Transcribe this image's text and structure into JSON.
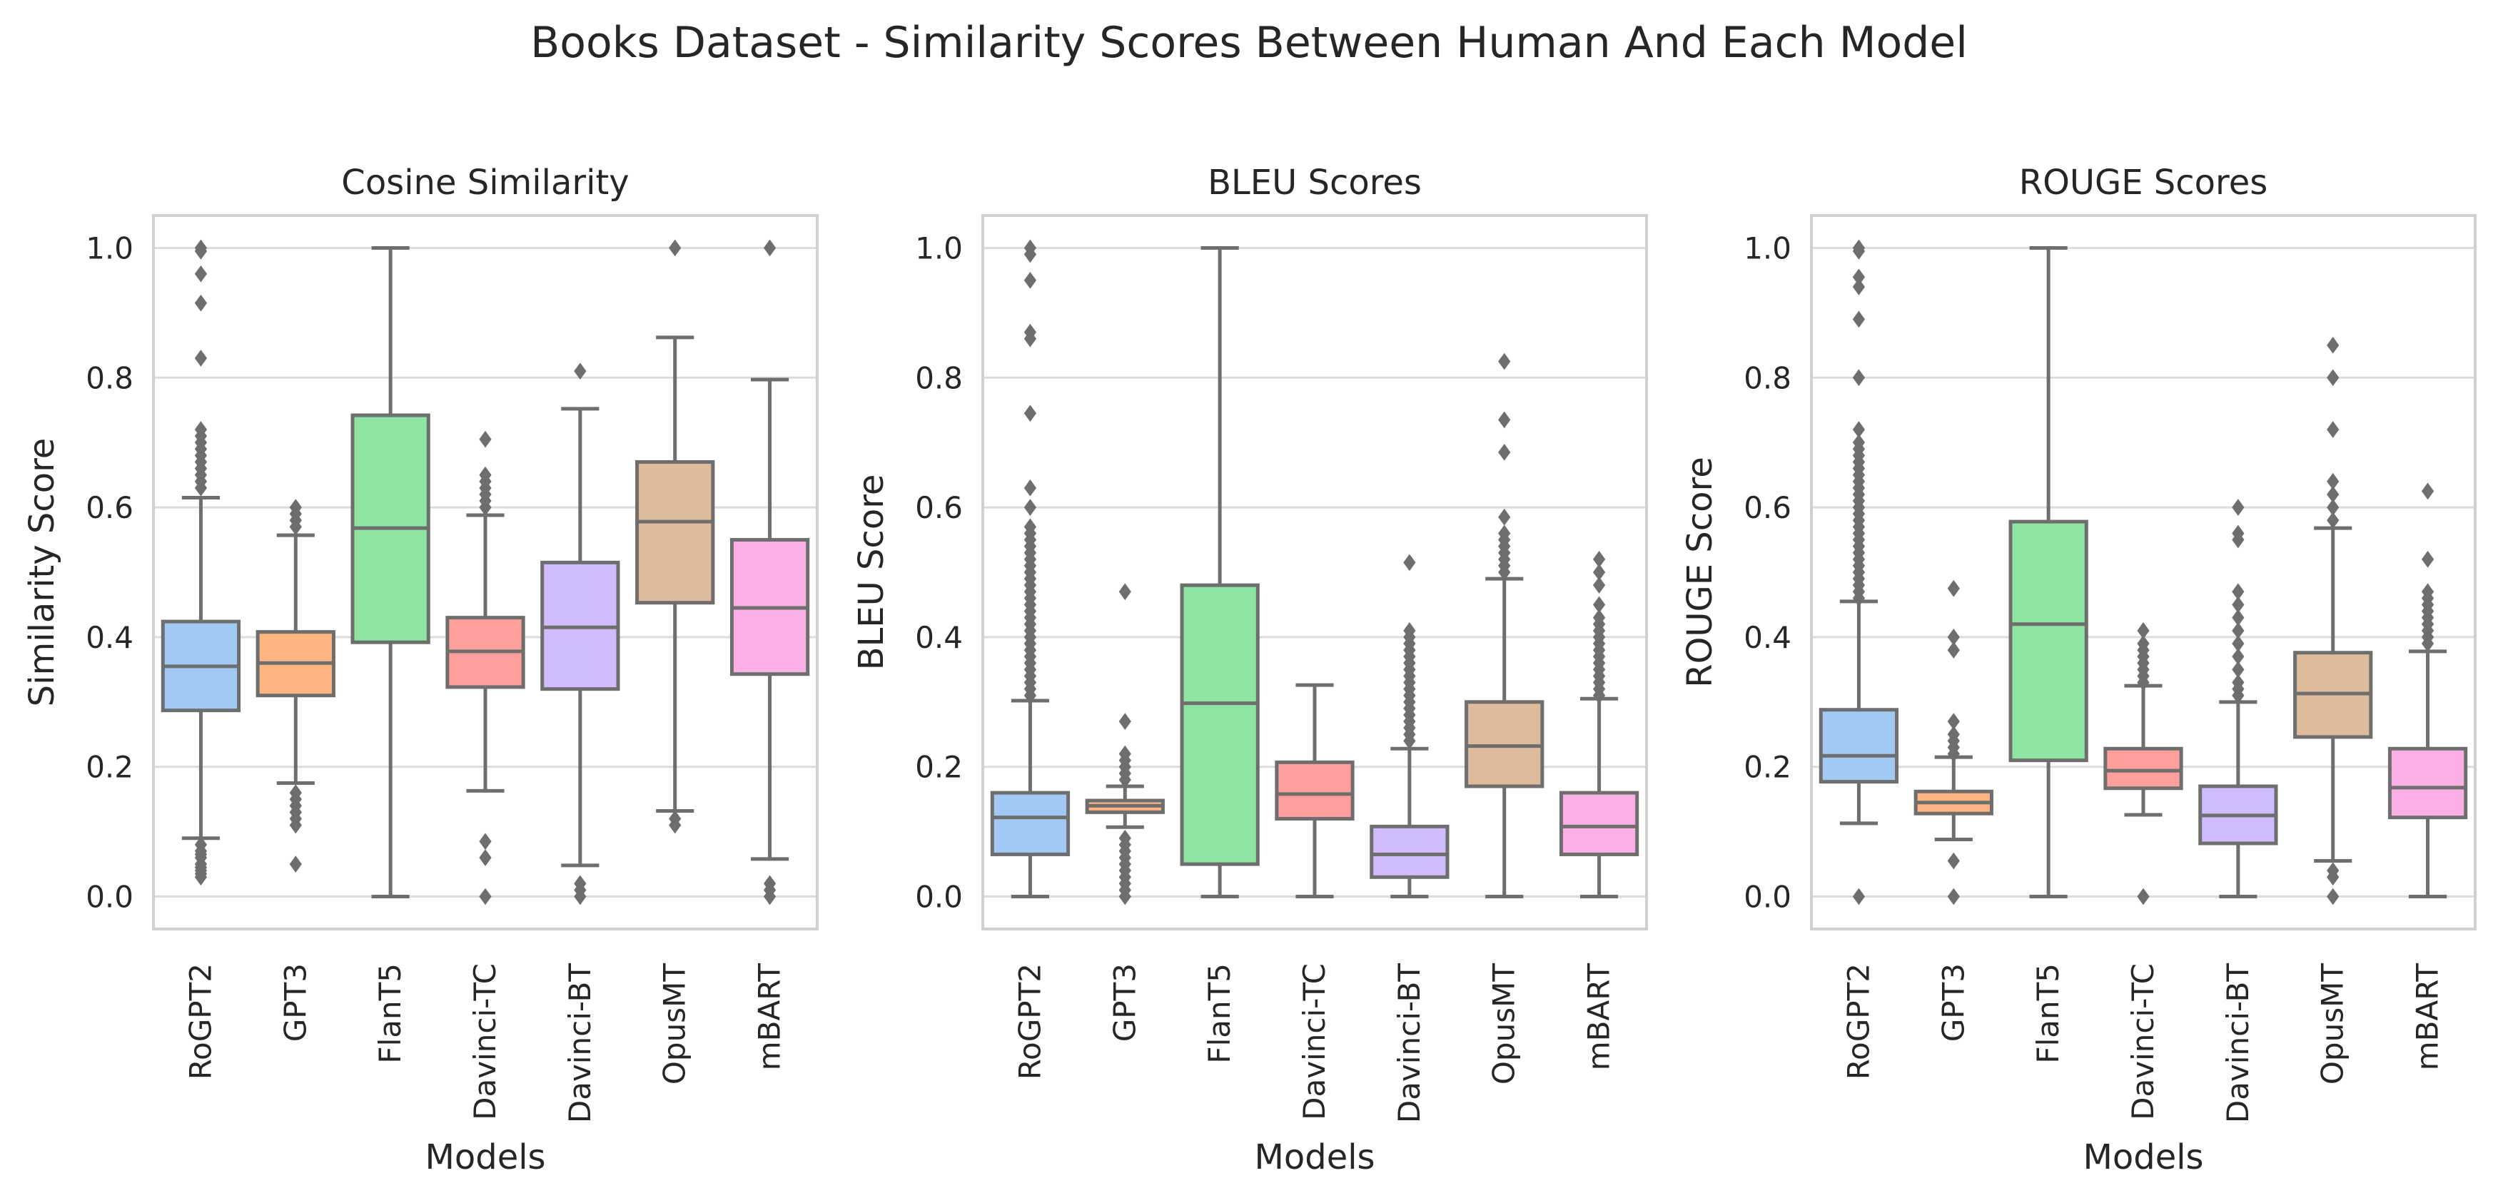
{
  "chart_data": [
    {
      "type": "box",
      "title": "Cosine Similarity",
      "xlabel": "Models",
      "ylabel": "Similarity Score",
      "ylim": [
        -0.05,
        1.05
      ],
      "yticks": [
        "0.0",
        "0.2",
        "0.4",
        "0.6",
        "0.8",
        "1.0"
      ],
      "grid": true,
      "categories": [
        "RoGPT2",
        "GPT3",
        "FlanT5",
        "Davinci-TC",
        "Davinci-BT",
        "OpusMT",
        "mBART"
      ],
      "boxes": [
        {
          "q1": 0.287,
          "median": 0.355,
          "q3": 0.424,
          "whisker_low": 0.09,
          "whisker_high": 0.615,
          "outliers": [
            0.03,
            0.035,
            0.04,
            0.045,
            0.05,
            0.06,
            0.065,
            0.07,
            0.08,
            0.63,
            0.64,
            0.65,
            0.66,
            0.67,
            0.68,
            0.69,
            0.7,
            0.71,
            0.72,
            0.83,
            0.915,
            0.96,
            0.995,
            1.0
          ]
        },
        {
          "q1": 0.31,
          "median": 0.36,
          "q3": 0.408,
          "whisker_low": 0.175,
          "whisker_high": 0.557,
          "outliers": [
            0.05,
            0.11,
            0.12,
            0.13,
            0.14,
            0.15,
            0.16,
            0.57,
            0.58,
            0.59,
            0.6
          ]
        },
        {
          "q1": 0.392,
          "median": 0.568,
          "q3": 0.742,
          "whisker_low": 0.0,
          "whisker_high": 1.0,
          "outliers": []
        },
        {
          "q1": 0.323,
          "median": 0.378,
          "q3": 0.43,
          "whisker_low": 0.163,
          "whisker_high": 0.588,
          "outliers": [
            0.0,
            0.06,
            0.085,
            0.6,
            0.61,
            0.62,
            0.63,
            0.64,
            0.65,
            0.705
          ]
        },
        {
          "q1": 0.32,
          "median": 0.415,
          "q3": 0.515,
          "whisker_low": 0.048,
          "whisker_high": 0.752,
          "outliers": [
            0.0,
            0.01,
            0.02,
            0.81
          ]
        },
        {
          "q1": 0.453,
          "median": 0.578,
          "q3": 0.67,
          "whisker_low": 0.132,
          "whisker_high": 0.862,
          "outliers": [
            0.11,
            0.12,
            1.0
          ]
        },
        {
          "q1": 0.343,
          "median": 0.445,
          "q3": 0.55,
          "whisker_low": 0.058,
          "whisker_high": 0.797,
          "outliers": [
            0.0,
            0.01,
            0.02,
            1.0
          ]
        }
      ]
    },
    {
      "type": "box",
      "title": "BLEU Scores",
      "xlabel": "Models",
      "ylabel": "BLEU Score",
      "ylim": [
        -0.05,
        1.05
      ],
      "yticks": [
        "0.0",
        "0.2",
        "0.4",
        "0.6",
        "0.8",
        "1.0"
      ],
      "grid": true,
      "categories": [
        "RoGPT2",
        "GPT3",
        "FlanT5",
        "Davinci-TC",
        "Davinci-BT",
        "OpusMT",
        "mBART"
      ],
      "boxes": [
        {
          "q1": 0.065,
          "median": 0.122,
          "q3": 0.16,
          "whisker_low": 0.0,
          "whisker_high": 0.302,
          "outliers": [
            0.31,
            0.32,
            0.33,
            0.34,
            0.35,
            0.36,
            0.37,
            0.38,
            0.39,
            0.4,
            0.41,
            0.42,
            0.43,
            0.44,
            0.45,
            0.46,
            0.47,
            0.48,
            0.49,
            0.5,
            0.51,
            0.52,
            0.53,
            0.54,
            0.55,
            0.56,
            0.57,
            0.6,
            0.63,
            0.745,
            0.86,
            0.87,
            0.95,
            0.99,
            1.0
          ]
        },
        {
          "q1": 0.13,
          "median": 0.14,
          "q3": 0.148,
          "whisker_low": 0.107,
          "whisker_high": 0.17,
          "outliers": [
            0.0,
            0.01,
            0.02,
            0.03,
            0.04,
            0.05,
            0.06,
            0.07,
            0.08,
            0.09,
            0.18,
            0.19,
            0.2,
            0.21,
            0.22,
            0.27,
            0.47
          ]
        },
        {
          "q1": 0.05,
          "median": 0.298,
          "q3": 0.48,
          "whisker_low": 0.0,
          "whisker_high": 1.0,
          "outliers": []
        },
        {
          "q1": 0.12,
          "median": 0.158,
          "q3": 0.207,
          "whisker_low": 0.0,
          "whisker_high": 0.326,
          "outliers": []
        },
        {
          "q1": 0.03,
          "median": 0.065,
          "q3": 0.108,
          "whisker_low": 0.0,
          "whisker_high": 0.228,
          "outliers": [
            0.24,
            0.25,
            0.26,
            0.27,
            0.28,
            0.29,
            0.3,
            0.31,
            0.32,
            0.33,
            0.34,
            0.35,
            0.36,
            0.37,
            0.38,
            0.39,
            0.4,
            0.41,
            0.515
          ]
        },
        {
          "q1": 0.17,
          "median": 0.232,
          "q3": 0.3,
          "whisker_low": 0.0,
          "whisker_high": 0.49,
          "outliers": [
            0.5,
            0.51,
            0.52,
            0.53,
            0.54,
            0.55,
            0.56,
            0.585,
            0.685,
            0.735,
            0.825
          ]
        },
        {
          "q1": 0.065,
          "median": 0.108,
          "q3": 0.16,
          "whisker_low": 0.0,
          "whisker_high": 0.305,
          "outliers": [
            0.31,
            0.32,
            0.33,
            0.34,
            0.35,
            0.36,
            0.37,
            0.38,
            0.39,
            0.4,
            0.41,
            0.42,
            0.43,
            0.45,
            0.48,
            0.5,
            0.52
          ]
        }
      ]
    },
    {
      "type": "box",
      "title": "ROUGE Scores",
      "xlabel": "Models",
      "ylabel": "ROUGE Score",
      "ylim": [
        -0.05,
        1.05
      ],
      "yticks": [
        "0.0",
        "0.2",
        "0.4",
        "0.6",
        "0.8",
        "1.0"
      ],
      "grid": true,
      "categories": [
        "RoGPT2",
        "GPT3",
        "FlanT5",
        "Davinci-TC",
        "Davinci-BT",
        "OpusMT",
        "mBART"
      ],
      "boxes": [
        {
          "q1": 0.177,
          "median": 0.217,
          "q3": 0.288,
          "whisker_low": 0.113,
          "whisker_high": 0.455,
          "outliers": [
            0.0,
            0.46,
            0.47,
            0.48,
            0.49,
            0.5,
            0.51,
            0.52,
            0.53,
            0.54,
            0.55,
            0.56,
            0.57,
            0.58,
            0.59,
            0.6,
            0.61,
            0.62,
            0.63,
            0.64,
            0.65,
            0.66,
            0.67,
            0.68,
            0.69,
            0.7,
            0.72,
            0.8,
            0.89,
            0.94,
            0.955,
            0.995,
            1.0
          ]
        },
        {
          "q1": 0.128,
          "median": 0.145,
          "q3": 0.162,
          "whisker_low": 0.088,
          "whisker_high": 0.215,
          "outliers": [
            0.0,
            0.055,
            0.22,
            0.23,
            0.24,
            0.25,
            0.27,
            0.38,
            0.4,
            0.475
          ]
        },
        {
          "q1": 0.21,
          "median": 0.42,
          "q3": 0.578,
          "whisker_low": 0.0,
          "whisker_high": 1.0,
          "outliers": []
        },
        {
          "q1": 0.167,
          "median": 0.194,
          "q3": 0.228,
          "whisker_low": 0.126,
          "whisker_high": 0.325,
          "outliers": [
            0.0,
            0.33,
            0.34,
            0.35,
            0.36,
            0.37,
            0.38,
            0.39,
            0.41
          ]
        },
        {
          "q1": 0.082,
          "median": 0.125,
          "q3": 0.17,
          "whisker_low": 0.0,
          "whisker_high": 0.3,
          "outliers": [
            0.31,
            0.32,
            0.33,
            0.35,
            0.37,
            0.39,
            0.41,
            0.43,
            0.45,
            0.47,
            0.55,
            0.56,
            0.6
          ]
        },
        {
          "q1": 0.246,
          "median": 0.313,
          "q3": 0.376,
          "whisker_low": 0.055,
          "whisker_high": 0.568,
          "outliers": [
            0.0,
            0.03,
            0.04,
            0.58,
            0.6,
            0.62,
            0.64,
            0.72,
            0.8,
            0.85
          ]
        },
        {
          "q1": 0.122,
          "median": 0.168,
          "q3": 0.228,
          "whisker_low": 0.0,
          "whisker_high": 0.378,
          "outliers": [
            0.39,
            0.4,
            0.41,
            0.42,
            0.43,
            0.44,
            0.45,
            0.46,
            0.47,
            0.52,
            0.625
          ]
        }
      ]
    }
  ],
  "figure": {
    "suptitle": "Books Dataset - Similarity Scores Between Human And Each Model"
  },
  "colors": {
    "boxes": [
      "#a1c9f4",
      "#ffb482",
      "#8de5a1",
      "#ff9f9b",
      "#d0bbff",
      "#debb9b",
      "#fab0e4"
    ],
    "edge": "#6e6e6e",
    "grid": "#dcdcdc",
    "spine": "#d0d0d0",
    "text": "#262626"
  }
}
